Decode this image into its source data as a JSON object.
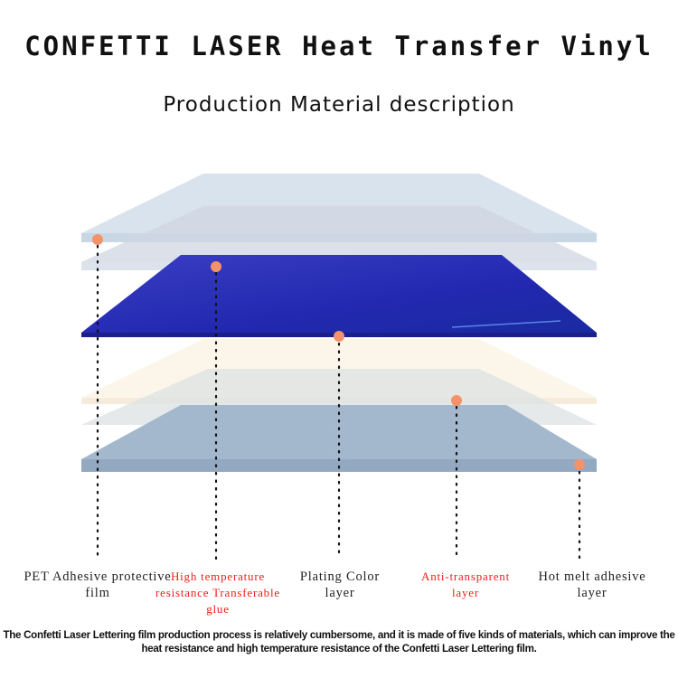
{
  "header": {
    "title": "CONFETTI LASER Heat Transfer Vinyl",
    "subtitle": "Production Material description"
  },
  "layers": [
    {
      "label": "PET Adhesive protective film",
      "color": "#d3dfea",
      "highlight": false
    },
    {
      "label": "High temperature resistance Transferable glue",
      "color": "#dfe3ec",
      "highlight": true
    },
    {
      "label": "Plating Color layer",
      "color": "#2b2fb6",
      "highlight": false
    },
    {
      "label": "Anti-transparent layer",
      "color": "#fbf2e4",
      "highlight": true
    },
    {
      "label": "Hot melt adhesive layer",
      "color": "#a3b7cd",
      "highlight": false
    }
  ],
  "colors": {
    "marker": "#f4926a",
    "highlight_text": "#ee1c1c"
  },
  "description": "The Confetti Laser Lettering film production process is relatively cumbersome, and it is made of five kinds of materials, which can improve the heat resistance and high temperature resistance of the  Confetti Laser  Lettering film."
}
